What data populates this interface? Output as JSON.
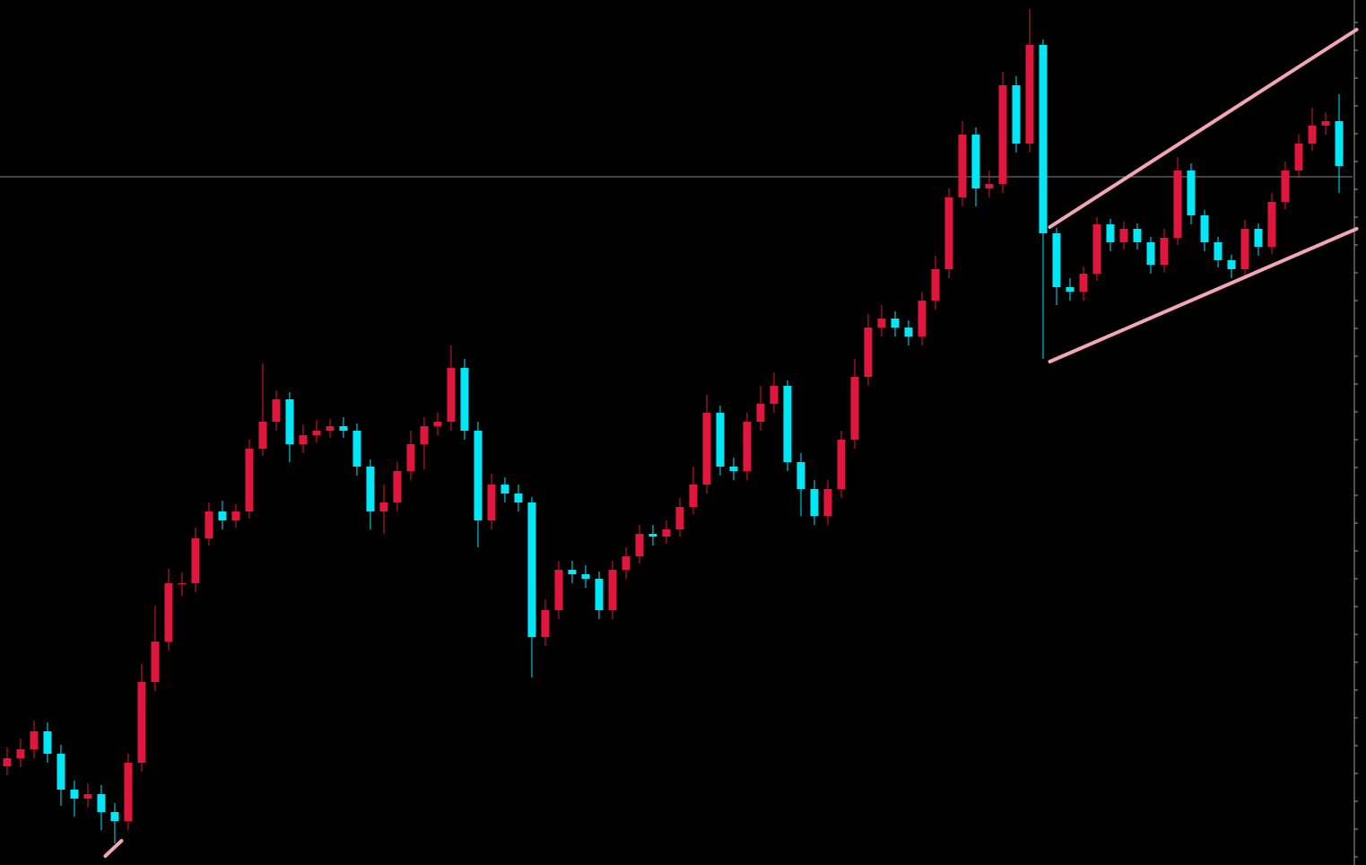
{
  "chart_data": {
    "type": "candlestick",
    "xlim": [
      -0.53,
      100
    ],
    "ylim": [
      0,
      964
    ],
    "yticks": [
      9,
      40,
      71,
      102,
      133,
      164,
      195,
      226,
      257,
      288,
      319,
      350,
      381,
      412,
      443,
      474,
      505,
      536,
      567,
      598,
      629,
      660,
      691,
      722,
      753,
      784,
      815,
      846,
      877,
      908,
      939
    ],
    "up_color": "#e0163d",
    "down_color": "#00e8f8",
    "background": "#000000",
    "axis_color": "#9aa0a6",
    "open": [
      110,
      119,
      129,
      149,
      124,
      84,
      74,
      79,
      59,
      49,
      114,
      204,
      249,
      314,
      314,
      364,
      394,
      384,
      394,
      464,
      494,
      519,
      469,
      479,
      484,
      489,
      484,
      444,
      394,
      404,
      439,
      469,
      489,
      494,
      554,
      484,
      384,
      424,
      414,
      404,
      254,
      284,
      329,
      324,
      319,
      284,
      329,
      344,
      369,
      366,
      374,
      399,
      424,
      504,
      444,
      439,
      494,
      514,
      534,
      449,
      419,
      389,
      419,
      474,
      544,
      599,
      609,
      599,
      589,
      629,
      664,
      744,
      814,
      754,
      759,
      869,
      804,
      914,
      704,
      644,
      639,
      659,
      714,
      694,
      709,
      694,
      669,
      699,
      774,
      724,
      694,
      674,
      664,
      709,
      689,
      739,
      774,
      804,
      824,
      829
    ],
    "high": [
      131,
      141,
      161,
      159,
      134,
      94,
      91,
      89,
      69,
      124,
      224,
      289,
      330,
      326,
      376,
      404,
      406,
      402,
      474,
      559,
      529,
      527,
      491,
      496,
      497,
      499,
      492,
      452,
      424,
      449,
      484,
      499,
      504,
      579,
      564,
      494,
      436,
      432,
      424,
      410,
      296,
      339,
      339,
      334,
      327,
      339,
      354,
      379,
      379,
      384,
      409,
      444,
      524,
      512,
      454,
      504,
      534,
      549,
      540,
      459,
      429,
      429,
      484,
      564,
      614,
      624,
      617,
      607,
      639,
      679,
      754,
      829,
      822,
      774,
      884,
      879,
      954,
      920,
      710,
      654,
      667,
      722,
      720,
      717,
      715,
      700,
      709,
      789,
      782,
      730,
      700,
      680,
      719,
      715,
      749,
      784,
      814,
      844,
      839,
      859
    ],
    "low": [
      100,
      109,
      119,
      114,
      66,
      54,
      64,
      39,
      24,
      39,
      104,
      194,
      239,
      300,
      304,
      356,
      374,
      376,
      386,
      456,
      484,
      449,
      459,
      471,
      476,
      476,
      434,
      374,
      369,
      394,
      429,
      441,
      479,
      484,
      474,
      354,
      374,
      404,
      394,
      209,
      244,
      274,
      314,
      309,
      274,
      274,
      319,
      336,
      356,
      358,
      366,
      391,
      414,
      434,
      429,
      429,
      484,
      504,
      439,
      389,
      379,
      379,
      409,
      464,
      534,
      589,
      589,
      579,
      579,
      619,
      654,
      734,
      734,
      744,
      749,
      794,
      794,
      564,
      624,
      629,
      629,
      651,
      684,
      686,
      686,
      659,
      661,
      691,
      714,
      684,
      666,
      654,
      654,
      679,
      681,
      731,
      766,
      796,
      814,
      749
    ],
    "close": [
      119,
      129,
      149,
      124,
      84,
      74,
      79,
      59,
      49,
      114,
      204,
      249,
      314,
      314,
      364,
      394,
      384,
      394,
      464,
      494,
      519,
      469,
      479,
      484,
      489,
      484,
      444,
      394,
      404,
      439,
      469,
      489,
      494,
      554,
      484,
      384,
      424,
      414,
      404,
      254,
      284,
      329,
      324,
      319,
      284,
      329,
      344,
      369,
      366,
      374,
      399,
      424,
      504,
      444,
      439,
      494,
      514,
      534,
      449,
      419,
      389,
      419,
      474,
      544,
      599,
      609,
      599,
      589,
      629,
      664,
      744,
      814,
      754,
      759,
      869,
      804,
      914,
      704,
      644,
      639,
      659,
      714,
      694,
      709,
      694,
      669,
      699,
      774,
      724,
      694,
      674,
      664,
      709,
      689,
      739,
      774,
      804,
      824,
      829,
      779
    ],
    "hline": {
      "value": 767,
      "color": "#7d8a94"
    },
    "trendlines": [
      {
        "x": [
          77.5,
          100.3
        ],
        "y": [
          711,
          931
        ],
        "color": "#f4a6b8"
      },
      {
        "x": [
          77.5,
          100.3
        ],
        "y": [
          561,
          709
        ],
        "color": "#f4a6b8"
      },
      {
        "x": [
          7.3,
          8.5
        ],
        "y": [
          10,
          27
        ],
        "color": "#f4a6b8"
      }
    ]
  }
}
